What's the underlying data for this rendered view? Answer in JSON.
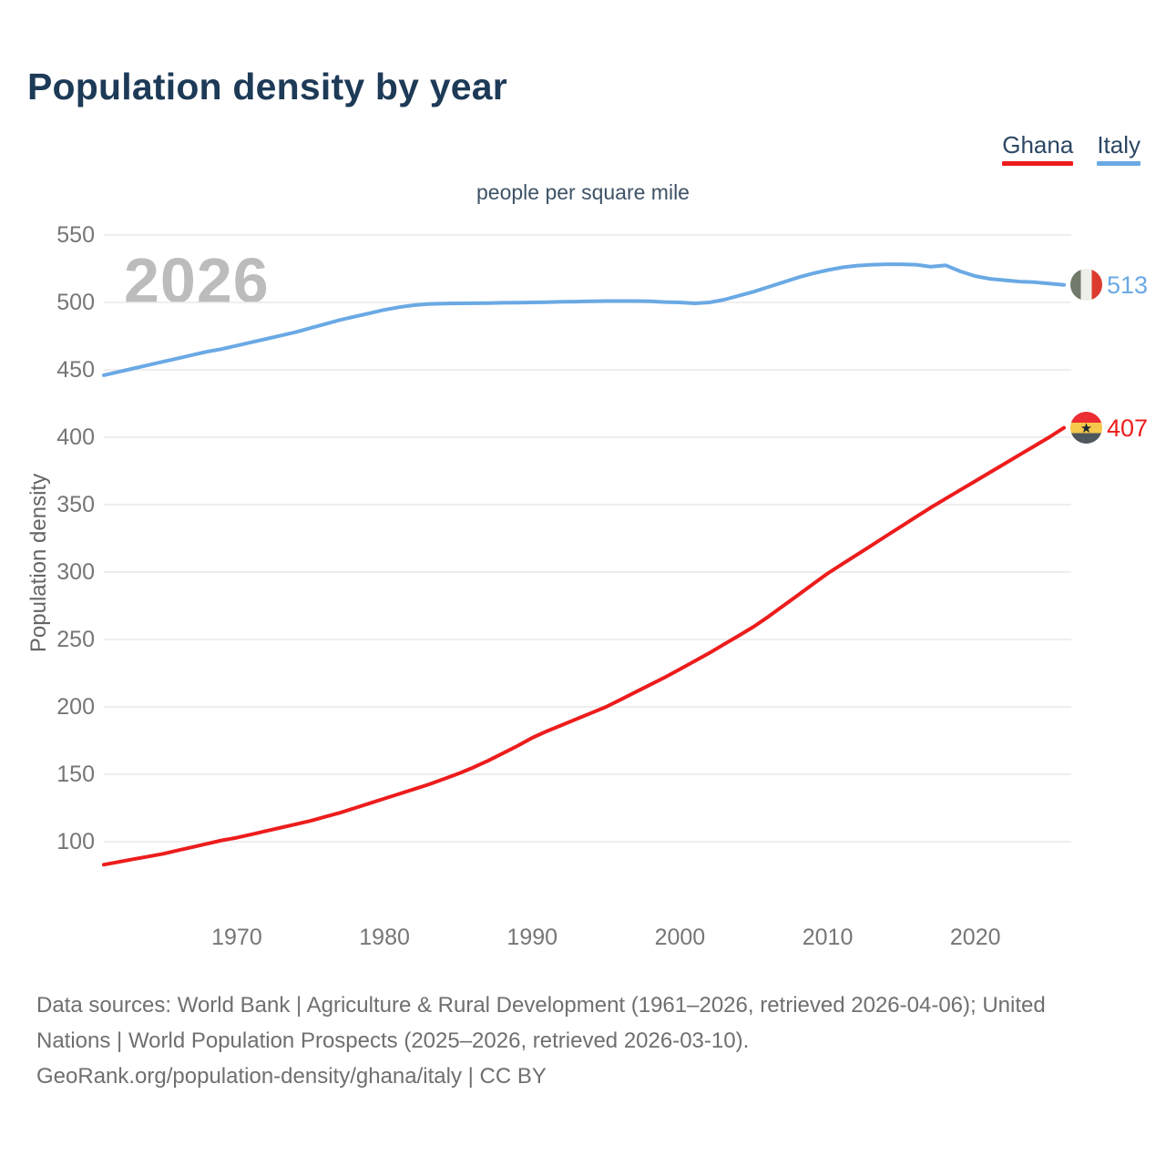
{
  "header": {
    "title": "Population density by year"
  },
  "legend": [
    {
      "label": "Ghana",
      "color": "#ed1c1c"
    },
    {
      "label": "Italy",
      "color": "#6aa9e4"
    }
  ],
  "subtitle": "people per square mile",
  "watermark": "2026",
  "chart_data": {
    "type": "line",
    "title": "Population density by year",
    "subtitle": "people per square mile",
    "ylabel": "Population density",
    "xlabel": "",
    "grid": true,
    "legend_position": "top-right",
    "xlim": [
      1961,
      2026
    ],
    "ylim": [
      75,
      560
    ],
    "yticks": [
      100,
      150,
      200,
      250,
      300,
      350,
      400,
      450,
      500,
      550
    ],
    "xticks": [
      1970,
      1980,
      1990,
      2000,
      2010,
      2020
    ],
    "x": [
      1961,
      1962,
      1963,
      1964,
      1965,
      1966,
      1967,
      1968,
      1969,
      1970,
      1971,
      1972,
      1973,
      1974,
      1975,
      1976,
      1977,
      1978,
      1979,
      1980,
      1981,
      1982,
      1983,
      1984,
      1985,
      1986,
      1987,
      1988,
      1989,
      1990,
      1991,
      1992,
      1993,
      1994,
      1995,
      1996,
      1997,
      1998,
      1999,
      2000,
      2001,
      2002,
      2003,
      2004,
      2005,
      2006,
      2007,
      2008,
      2009,
      2010,
      2011,
      2012,
      2013,
      2014,
      2015,
      2016,
      2017,
      2018,
      2019,
      2020,
      2021,
      2022,
      2023,
      2024,
      2025,
      2026
    ],
    "series": [
      {
        "name": "Ghana",
        "color": "#ed1c1c",
        "end_label": "407",
        "end_value": 407,
        "flag": "ghana-flag",
        "values": [
          83,
          85,
          87,
          89,
          91,
          93.5,
          96,
          98.5,
          101,
          103,
          105.5,
          108,
          110.5,
          113,
          115.5,
          118.5,
          121.5,
          125,
          128.5,
          132,
          135.5,
          139,
          142.5,
          146.5,
          150.5,
          155,
          160,
          165.5,
          171,
          177,
          182,
          186.5,
          191,
          195.5,
          200,
          205.5,
          211,
          216.5,
          222,
          228,
          234,
          240,
          246.5,
          253,
          259.5,
          267,
          275,
          283,
          291,
          299,
          306,
          313,
          320,
          327,
          334,
          341,
          348,
          354.5,
          361,
          367.5,
          374,
          380.5,
          387,
          393.5,
          400,
          407
        ]
      },
      {
        "name": "Italy",
        "color": "#6aa9e4",
        "end_label": "513",
        "end_value": 513,
        "flag": "italy-flag",
        "values": [
          446,
          448.5,
          451,
          453.5,
          456,
          458.5,
          461,
          463.5,
          465.5,
          468,
          470.5,
          473,
          475.5,
          478,
          481,
          484,
          487,
          489.5,
          492,
          494.5,
          496.5,
          498,
          498.8,
          499.2,
          499.3,
          499.4,
          499.5,
          499.7,
          499.8,
          500,
          500.2,
          500.5,
          500.6,
          500.8,
          501,
          501,
          501,
          500.8,
          500.3,
          500,
          499.3,
          500,
          502,
          505,
          508,
          511.5,
          515,
          518.5,
          521.5,
          524,
          526,
          527.3,
          528,
          528.3,
          528.3,
          528,
          526.5,
          527.5,
          523,
          519.5,
          517.5,
          516.5,
          515.5,
          515,
          514,
          513
        ]
      }
    ]
  },
  "footer": {
    "lines": [
      "Data sources: World Bank | Agriculture & Rural Development (1961–2026, retrieved 2026-04-06); United",
      "Nations | World Population Prospects (2025–2026, retrieved 2026-03-10).",
      "GeoRank.org/population-density/ghana/italy | CC BY"
    ]
  }
}
